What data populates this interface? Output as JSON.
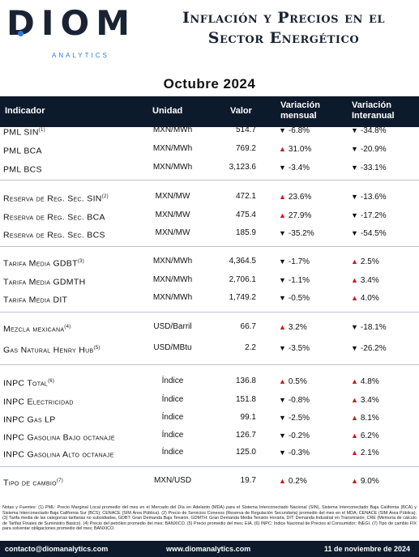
{
  "logo": {
    "word": "DIOM",
    "sub": "ANALYTICS"
  },
  "title": {
    "line1": "Inflación y Precios en el",
    "line2": "Sector Energético"
  },
  "period": "Octubre 2024",
  "headers": {
    "indicator": "Indicador",
    "unit": "Unidad",
    "value": "Valor",
    "monthly_1": "Variación",
    "monthly_2": "mensual",
    "annual_1": "Variación",
    "annual_2": "Interanual"
  },
  "rows": [
    {
      "name": "PML SIN",
      "note": "(1)",
      "unit": "MXN/MWh",
      "value": "514.7",
      "mes_dir": "down",
      "mes": "-6.8%",
      "int_dir": "down",
      "int": "-34.8%"
    },
    {
      "name": "PML BCA",
      "note": "",
      "unit": "MXN/MWh",
      "value": "769.2",
      "mes_dir": "up",
      "mes": "31.0%",
      "int_dir": "down",
      "int": "-20.9%"
    },
    {
      "name": "PML BCS",
      "note": "",
      "unit": "MXN/MWh",
      "value": "3,123.6",
      "mes_dir": "down",
      "mes": "-3.4%",
      "int_dir": "down",
      "int": "-33.1%"
    },
    {
      "name": "Reserva de Reg. Sec. SIN",
      "note": "(2)",
      "unit": "MXN/MW",
      "value": "472.1",
      "mes_dir": "up",
      "mes": "23.6%",
      "int_dir": "down",
      "int": "-13.6%"
    },
    {
      "name": "Reserva de Reg. Sec. BCA",
      "note": "",
      "unit": "MXN/MW",
      "value": "475.4",
      "mes_dir": "up",
      "mes": "27.9%",
      "int_dir": "down",
      "int": "-17.2%"
    },
    {
      "name": "Reserva de Reg. Sec. BCS",
      "note": "",
      "unit": "MXN/MW",
      "value": "185.9",
      "mes_dir": "down",
      "mes": "-35.2%",
      "int_dir": "down",
      "int": "-54.5%"
    },
    {
      "name": "Tarifa Media GDBT",
      "note": "(3)",
      "unit": "MXN/MWh",
      "value": "4,364.5",
      "mes_dir": "down",
      "mes": "-1.7%",
      "int_dir": "up",
      "int": "2.5%"
    },
    {
      "name": "Tarifa Media GDMTH",
      "note": "",
      "unit": "MXN/MWh",
      "value": "2,706.1",
      "mes_dir": "down",
      "mes": "-1.1%",
      "int_dir": "up",
      "int": "3.4%"
    },
    {
      "name": "Tarifa Media DIT",
      "note": "",
      "unit": "MXN/MWh",
      "value": "1,749.2",
      "mes_dir": "down",
      "mes": "-0.5%",
      "int_dir": "up",
      "int": "4.0%"
    },
    {
      "name": "Mezcla mexicana",
      "note": "(4)",
      "unit": "USD/Barril",
      "value": "66.7",
      "mes_dir": "up",
      "mes": "3.2%",
      "int_dir": "down",
      "int": "-18.1%"
    },
    {
      "name": "Gas Natural Henry Hub",
      "note": "(5)",
      "unit": "USD/MBtu",
      "value": "2.2",
      "mes_dir": "down",
      "mes": "-3.5%",
      "int_dir": "down",
      "int": "-26.2%"
    },
    {
      "name": "INPC Total",
      "note": "(6)",
      "unit": "Índice",
      "value": "136.8",
      "mes_dir": "up",
      "mes": "0.5%",
      "int_dir": "up",
      "int": "4.8%"
    },
    {
      "name": "INPC Electricidad",
      "note": "",
      "unit": "Índice",
      "value": "151.8",
      "mes_dir": "down",
      "mes": "-0.8%",
      "int_dir": "up",
      "int": "3.4%"
    },
    {
      "name": "INPC Gas LP",
      "note": "",
      "unit": "Índice",
      "value": "99.1",
      "mes_dir": "down",
      "mes": "-2.5%",
      "int_dir": "up",
      "int": "8.1%"
    },
    {
      "name": "INPC Gasolina Bajo octanaje",
      "note": "",
      "unit": "Índice",
      "value": "126.7",
      "mes_dir": "down",
      "mes": "-0.2%",
      "int_dir": "up",
      "int": "6.2%"
    },
    {
      "name": "INPC Gasolina Alto octanaje",
      "note": "",
      "unit": "Índice",
      "value": "125.0",
      "mes_dir": "down",
      "mes": "-0.3%",
      "int_dir": "up",
      "int": "2.1%"
    },
    {
      "name": "Tipo de cambio",
      "note": "(7)",
      "unit": "MXN/USD",
      "value": "19.7",
      "mes_dir": "up",
      "mes": "0.2%",
      "int_dir": "up",
      "int": "9.0%"
    }
  ],
  "notes": "Notas y Fuentes: (1) PML: Precio Marginal Local promedio del mes en el Mercado del Día en Adelanto (MDA) para el Sistema Interconectado Nacional (SIN), Sistema Interconectado Baja California (BCA) y Sistema Interconectado Baja California Sur (BCS); CENACE (SIM Área Pública). (2) Precio de Servicios Conexos (Reserva de Regulación Secundaria) promedio del mes en el MDA; CENACE (SIM Área Pública). (3) Tarifa media de las categorías tarifarias no subsidiadas, GDBT: Gran Demanda Baja Tensión, GDMTH: Gran Demanda Media Tensión Horaria, DIT: Demanda Industrial en Transmisión; CRE (Memoria de cálculo de Tarifas Finales de Suministro Básico). (4) Precio del petróleo promedio del mes; BANXICO. (5) Precio promedio del mes; EIA. (6) INPC: Índice Nacional de Precios al Consumidor; INEGI. (7) Tipo de cambio FIX para solventar obligaciones promedio del mes; BANXICO.",
  "footer": {
    "email": "contacto@diomanalytics.com",
    "web": "www.diomanalytics.com",
    "date": "11 de noviembre de 2024"
  },
  "colors": {
    "navy": "#0d1a2b",
    "up_red": "#d0181e",
    "accent_blue": "#2b7be4"
  },
  "icons": {
    "up": "triangle-up-icon",
    "down": "triangle-down-icon"
  }
}
